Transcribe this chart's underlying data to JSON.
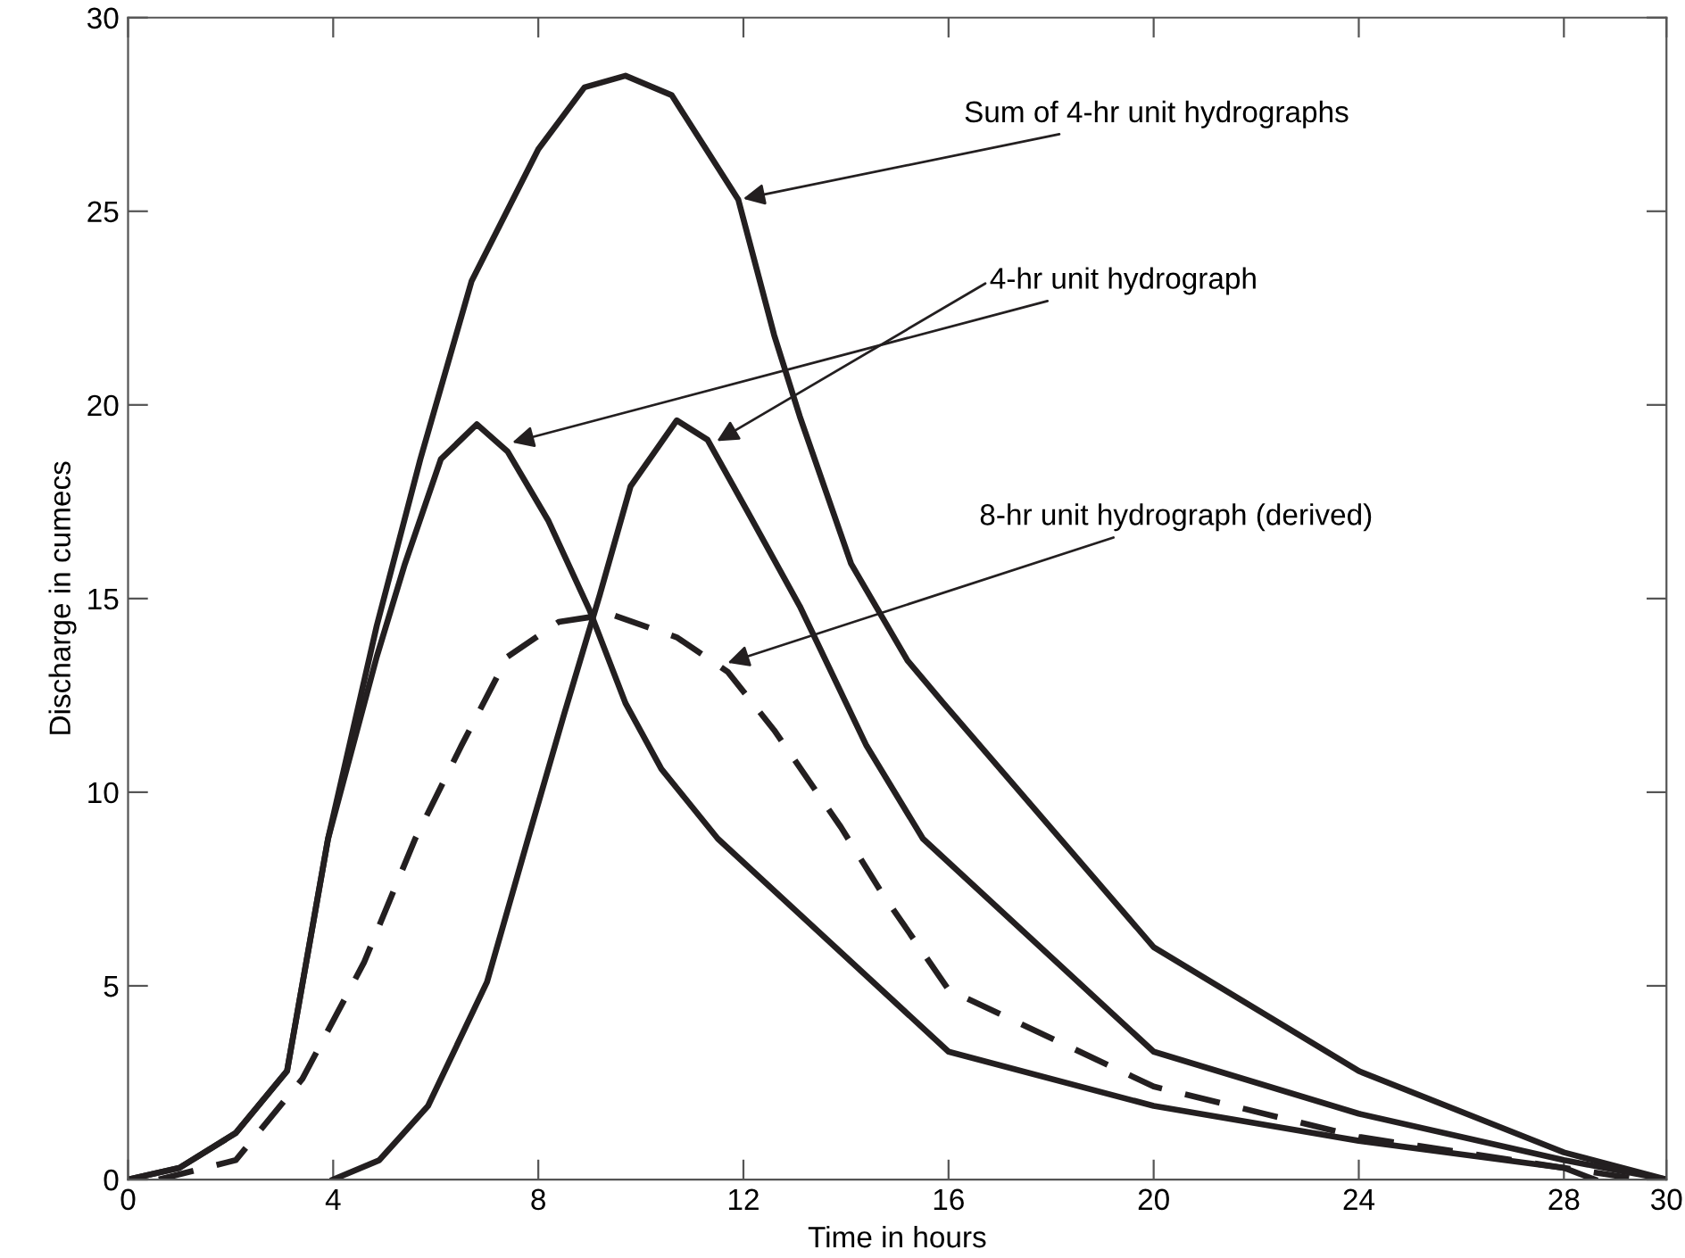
{
  "chart_data": {
    "type": "line",
    "xlabel": "Time in hours",
    "ylabel": "Discharge in cumecs",
    "xlim": [
      0,
      30
    ],
    "xticks": [
      0,
      4,
      8,
      12,
      16,
      20,
      24,
      28,
      30
    ],
    "ylim": [
      0,
      30
    ],
    "yticks": [
      0,
      5,
      10,
      15,
      20,
      25,
      30
    ],
    "grid": false,
    "legend": false,
    "marker": "none",
    "series": [
      {
        "color": "#231f20",
        "line_style": "solid",
        "x": [
          0,
          1.0,
          2.1,
          3.1,
          3.9,
          4.85,
          5.7,
          6.7,
          8.0,
          8.9,
          9.7,
          10.6,
          11.9,
          12.6,
          13.1,
          14.1,
          15.2,
          15.9,
          20,
          24,
          28,
          30
        ],
        "values": [
          0,
          0.3,
          1.2,
          2.8,
          8.8,
          14.3,
          18.6,
          23.2,
          26.6,
          28.2,
          28.5,
          28.0,
          25.3,
          21.8,
          19.7,
          15.9,
          13.4,
          12.3,
          6.0,
          2.8,
          0.7,
          0
        ]
      },
      {
        "color": "#231f20",
        "line_style": "solid",
        "x": [
          0,
          1.0,
          2.1,
          3.1,
          3.9,
          4.85,
          5.4,
          6.1,
          6.8,
          7.4,
          8.2,
          9.0,
          9.7,
          10.4,
          11.5,
          16,
          20,
          24,
          28,
          28.6
        ],
        "values": [
          0,
          0.3,
          1.2,
          2.8,
          8.8,
          13.5,
          15.9,
          18.6,
          19.5,
          18.8,
          17.0,
          14.7,
          12.3,
          10.6,
          8.8,
          3.3,
          1.9,
          1.0,
          0.3,
          0
        ]
      },
      {
        "color": "#231f20",
        "line_style": "solid",
        "x": [
          4,
          4.9,
          5.85,
          7.0,
          7.8,
          8.5,
          9.2,
          9.8,
          10.7,
          11.3,
          12.1,
          13.1,
          14.4,
          15.5,
          20,
          24,
          28,
          30
        ],
        "values": [
          0,
          0.5,
          1.9,
          5.1,
          8.8,
          12.0,
          15.1,
          17.9,
          19.6,
          19.1,
          17.2,
          14.8,
          11.2,
          8.8,
          3.3,
          1.7,
          0.5,
          0
        ]
      },
      {
        "color": "#231f20",
        "line_style": "dashed",
        "x": [
          0.6,
          2.1,
          3.4,
          4.6,
          5.6,
          6.5,
          7.4,
          8.4,
          9.4,
          10.7,
          11.7,
          12.6,
          13.9,
          14.7,
          16,
          20,
          24,
          28,
          29.5
        ],
        "values": [
          0,
          0.5,
          2.6,
          5.6,
          8.8,
          11.2,
          13.5,
          14.4,
          14.6,
          14.0,
          13.1,
          11.6,
          9.1,
          7.4,
          4.9,
          2.4,
          1.1,
          0.3,
          0
        ]
      }
    ],
    "annotations": [
      {
        "text": "Sum of 4-hr unit hydrographs",
        "x": 11.9,
        "y": 25.3
      },
      {
        "text": "4-hr unit hydrograph",
        "x": 7.4,
        "y": 19.0
      },
      {
        "text": "8-hr unit hydrograph (derived)",
        "x": 11.6,
        "y": 13.3
      }
    ]
  }
}
